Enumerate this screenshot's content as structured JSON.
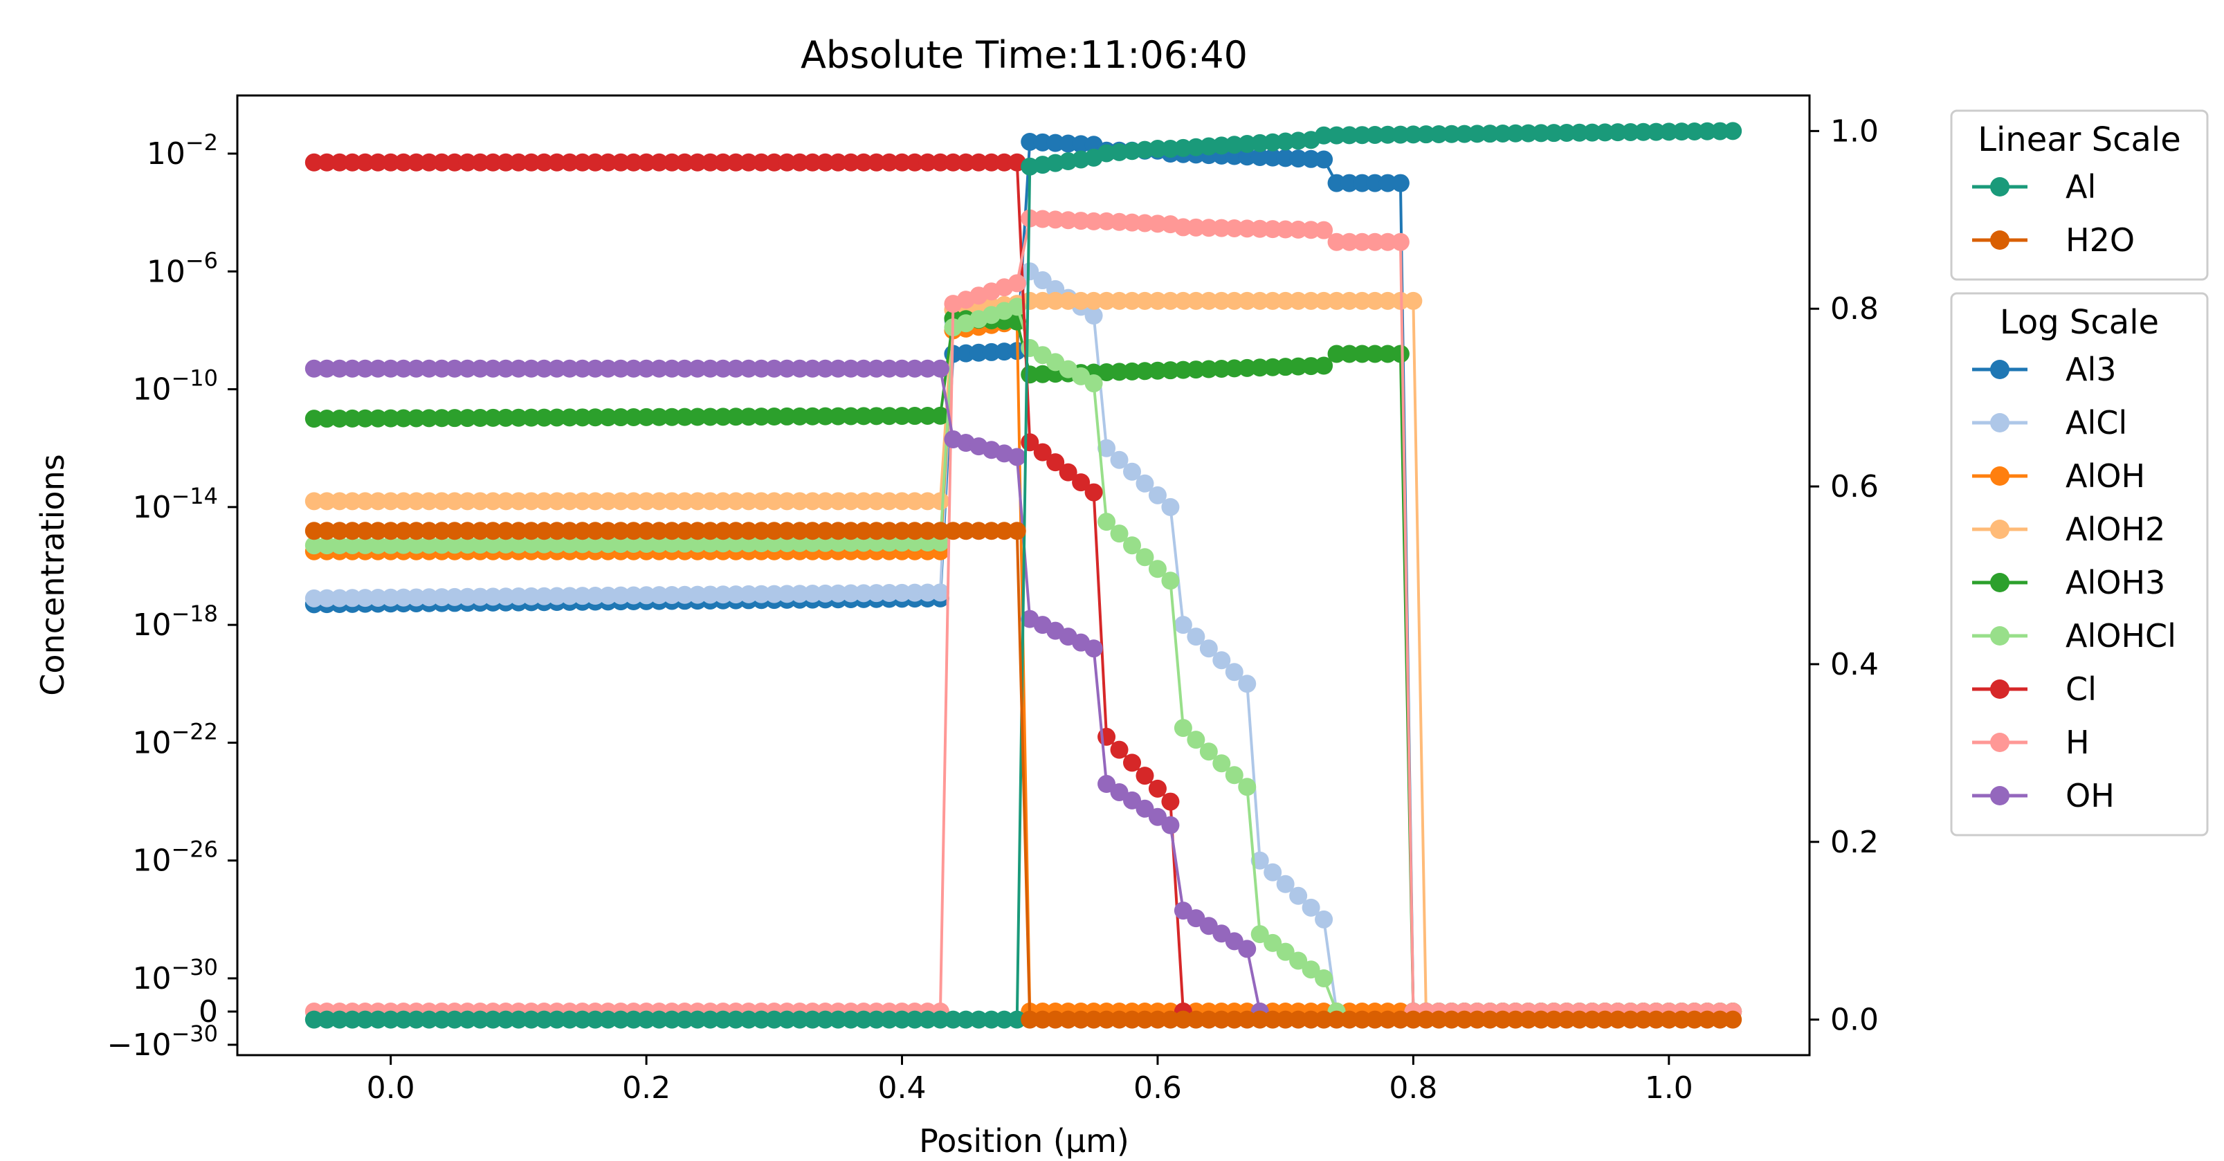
{
  "chart_data": {
    "type": "line",
    "title": "Absolute Time:11:06:40",
    "xlabel": "Position (µm)",
    "ylabel_left": "Concentrations",
    "xlim": [
      -0.12,
      1.11
    ],
    "x_ticks": [
      0.0,
      0.2,
      0.4,
      0.6,
      0.8,
      1.0
    ],
    "x_tick_labels": [
      "0.0",
      "0.2",
      "0.4",
      "0.6",
      "0.8",
      "1.0"
    ],
    "y_left_scale": "symlog",
    "y_left_ticks": [
      {
        "value": "1e-2",
        "base": "10",
        "exp": "−2"
      },
      {
        "value": "1e-6",
        "base": "10",
        "exp": "−6"
      },
      {
        "value": "1e-10",
        "base": "10",
        "exp": "−10"
      },
      {
        "value": "1e-14",
        "base": "10",
        "exp": "−14"
      },
      {
        "value": "1e-18",
        "base": "10",
        "exp": "−18"
      },
      {
        "value": "1e-22",
        "base": "10",
        "exp": "−22"
      },
      {
        "value": "1e-26",
        "base": "10",
        "exp": "−26"
      },
      {
        "value": "1e-30",
        "base": "10",
        "exp": "−30"
      },
      {
        "value": "0",
        "base": "0",
        "exp": ""
      },
      {
        "value": "-1e-30",
        "base": "−10",
        "exp": "−30"
      }
    ],
    "y_right_scale": "linear",
    "y_right_lim": [
      -0.04,
      1.04
    ],
    "y_right_ticks": [
      0.0,
      0.2,
      0.4,
      0.6,
      0.8,
      1.0
    ],
    "y_right_tick_labels": [
      "0.0",
      "0.2",
      "0.4",
      "0.6",
      "0.8",
      "1.0"
    ],
    "grid": false,
    "legend_position": "outside-right",
    "legends": [
      {
        "title": "Linear Scale",
        "entries": [
          {
            "name": "Al",
            "color": "#1a9a7a"
          },
          {
            "name": "H2O",
            "color": "#d95f02"
          }
        ]
      },
      {
        "title": "Log Scale",
        "entries": [
          {
            "name": "Al3",
            "color": "#1f77b4"
          },
          {
            "name": "AlCl",
            "color": "#aec7e8"
          },
          {
            "name": "AlOH",
            "color": "#ff7f0e"
          },
          {
            "name": "AlOH2",
            "color": "#ffbb78"
          },
          {
            "name": "AlOH3",
            "color": "#2ca02c"
          },
          {
            "name": "AlOHCl",
            "color": "#98df8a"
          },
          {
            "name": "Cl",
            "color": "#d62728"
          },
          {
            "name": "H",
            "color": "#ff9896"
          },
          {
            "name": "OH",
            "color": "#9467bd"
          }
        ]
      }
    ],
    "x_grid": {
      "start": -0.06,
      "step": 0.01,
      "count": 112
    },
    "linear_series": [
      {
        "name": "Al",
        "color": "#1a9a7a",
        "axis": "right",
        "segments": [
          {
            "x0": -0.06,
            "x1": 0.49,
            "y0": 0.0,
            "y1": 0.0
          },
          {
            "x0": 0.5,
            "x1": 0.55,
            "y0": 0.96,
            "y1": 0.97
          },
          {
            "x0": 0.56,
            "x1": 0.6,
            "y0": 0.975,
            "y1": 0.98
          },
          {
            "x0": 0.61,
            "x1": 0.72,
            "y0": 0.98,
            "y1": 0.99
          },
          {
            "x0": 0.73,
            "x1": 1.05,
            "y0": 0.995,
            "y1": 1.0
          }
        ]
      },
      {
        "name": "H2O",
        "color": "#d95f02",
        "axis": "right",
        "segments": [
          {
            "x0": -0.06,
            "x1": 0.49,
            "y0": 0.55,
            "y1": 0.55
          },
          {
            "x0": 0.5,
            "x1": 1.05,
            "y0": 0.0,
            "y1": 0.0
          }
        ]
      }
    ],
    "log_series": [
      {
        "name": "Al3",
        "color": "#1f77b4",
        "segments": [
          {
            "x0": -0.06,
            "x1": 0.43,
            "e0": -17.3,
            "e1": -17.1
          },
          {
            "x0": 0.44,
            "x1": 0.49,
            "e0": -8.8,
            "e1": -8.7
          },
          {
            "x0": 0.5,
            "x1": 0.55,
            "e0": -1.6,
            "e1": -1.7
          },
          {
            "x0": 0.56,
            "x1": 0.6,
            "e0": -1.9,
            "e1": -1.9
          },
          {
            "x0": 0.61,
            "x1": 0.73,
            "e0": -2.0,
            "e1": -2.2
          },
          {
            "x0": 0.74,
            "x1": 0.79,
            "e0": -3.0,
            "e1": -3.0
          },
          {
            "x0": 0.8,
            "x1": 0.8,
            "e0": -31.0,
            "e1": -31.0
          }
        ]
      },
      {
        "name": "AlCl",
        "color": "#aec7e8",
        "segments": [
          {
            "x0": -0.06,
            "x1": 0.43,
            "e0": -17.1,
            "e1": -16.9
          },
          {
            "x0": 0.44,
            "x1": 0.49,
            "e0": -7.7,
            "e1": -7.2
          },
          {
            "x0": 0.5,
            "x1": 0.55,
            "e0": -6.0,
            "e1": -7.5
          },
          {
            "x0": 0.56,
            "x1": 0.61,
            "e0": -12.0,
            "e1": -14.0
          },
          {
            "x0": 0.62,
            "x1": 0.67,
            "e0": -18.0,
            "e1": -20.0
          },
          {
            "x0": 0.68,
            "x1": 0.73,
            "e0": -26.0,
            "e1": -28.0
          },
          {
            "x0": 0.74,
            "x1": 0.74,
            "e0": -31.0,
            "e1": -31.0
          }
        ]
      },
      {
        "name": "AlOH",
        "color": "#ff7f0e",
        "segments": [
          {
            "x0": -0.06,
            "x1": 0.43,
            "e0": -15.5,
            "e1": -15.5
          },
          {
            "x0": 0.44,
            "x1": 0.49,
            "e0": -8.0,
            "e1": -7.7
          },
          {
            "x0": 0.5,
            "x1": 1.05,
            "e0": -31.0,
            "e1": -31.0
          }
        ]
      },
      {
        "name": "AlOH2",
        "color": "#ffbb78",
        "segments": [
          {
            "x0": -0.06,
            "x1": 0.43,
            "e0": -13.8,
            "e1": -13.8
          },
          {
            "x0": 0.44,
            "x1": 0.49,
            "e0": -7.3,
            "e1": -7.1
          },
          {
            "x0": 0.5,
            "x1": 0.8,
            "e0": -7.0,
            "e1": -7.0
          },
          {
            "x0": 0.81,
            "x1": 1.05,
            "e0": -31.0,
            "e1": -31.0
          }
        ]
      },
      {
        "name": "AlOH3",
        "color": "#2ca02c",
        "segments": [
          {
            "x0": -0.06,
            "x1": 0.43,
            "e0": -11.0,
            "e1": -10.9
          },
          {
            "x0": 0.44,
            "x1": 0.49,
            "e0": -7.6,
            "e1": -7.7
          },
          {
            "x0": 0.5,
            "x1": 0.73,
            "e0": -9.5,
            "e1": -9.2
          },
          {
            "x0": 0.74,
            "x1": 0.79,
            "e0": -8.8,
            "e1": -8.8
          },
          {
            "x0": 0.8,
            "x1": 1.05,
            "e0": -31.0,
            "e1": -31.0
          }
        ]
      },
      {
        "name": "AlOHCl",
        "color": "#98df8a",
        "segments": [
          {
            "x0": -0.06,
            "x1": 0.43,
            "e0": -15.3,
            "e1": -15.2
          },
          {
            "x0": 0.44,
            "x1": 0.49,
            "e0": -7.9,
            "e1": -7.2
          },
          {
            "x0": 0.5,
            "x1": 0.55,
            "e0": -8.6,
            "e1": -9.8
          },
          {
            "x0": 0.56,
            "x1": 0.61,
            "e0": -14.5,
            "e1": -16.5
          },
          {
            "x0": 0.62,
            "x1": 0.67,
            "e0": -21.5,
            "e1": -23.5
          },
          {
            "x0": 0.68,
            "x1": 0.73,
            "e0": -28.5,
            "e1": -30.0
          },
          {
            "x0": 0.74,
            "x1": 0.74,
            "e0": -31.0,
            "e1": -31.0
          }
        ]
      },
      {
        "name": "Cl",
        "color": "#d62728",
        "segments": [
          {
            "x0": -0.06,
            "x1": 0.49,
            "e0": -2.3,
            "e1": -2.3
          },
          {
            "x0": 0.5,
            "x1": 0.55,
            "e0": -11.8,
            "e1": -13.5
          },
          {
            "x0": 0.56,
            "x1": 0.61,
            "e0": -21.8,
            "e1": -24.0
          },
          {
            "x0": 0.62,
            "x1": 0.62,
            "e0": -31.0,
            "e1": -31.0
          }
        ]
      },
      {
        "name": "H",
        "color": "#ff9896",
        "segments": [
          {
            "x0": -0.06,
            "x1": 0.43,
            "e0": -31.0,
            "e1": -31.0
          },
          {
            "x0": 0.44,
            "x1": 0.49,
            "e0": -7.1,
            "e1": -6.4
          },
          {
            "x0": 0.5,
            "x1": 0.55,
            "e0": -4.2,
            "e1": -4.3
          },
          {
            "x0": 0.56,
            "x1": 0.61,
            "e0": -4.3,
            "e1": -4.4
          },
          {
            "x0": 0.62,
            "x1": 0.73,
            "e0": -4.5,
            "e1": -4.6
          },
          {
            "x0": 0.74,
            "x1": 0.79,
            "e0": -5.0,
            "e1": -5.0
          },
          {
            "x0": 0.8,
            "x1": 1.05,
            "e0": -31.0,
            "e1": -31.0
          }
        ]
      },
      {
        "name": "OH",
        "color": "#9467bd",
        "segments": [
          {
            "x0": -0.06,
            "x1": 0.43,
            "e0": -9.3,
            "e1": -9.3
          },
          {
            "x0": 0.44,
            "x1": 0.49,
            "e0": -11.7,
            "e1": -12.3
          },
          {
            "x0": 0.5,
            "x1": 0.55,
            "e0": -17.8,
            "e1": -18.8
          },
          {
            "x0": 0.56,
            "x1": 0.61,
            "e0": -23.4,
            "e1": -24.8
          },
          {
            "x0": 0.62,
            "x1": 0.67,
            "e0": -27.7,
            "e1": -29.0
          },
          {
            "x0": 0.68,
            "x1": 0.68,
            "e0": -31.0,
            "e1": -31.0
          }
        ]
      }
    ]
  }
}
